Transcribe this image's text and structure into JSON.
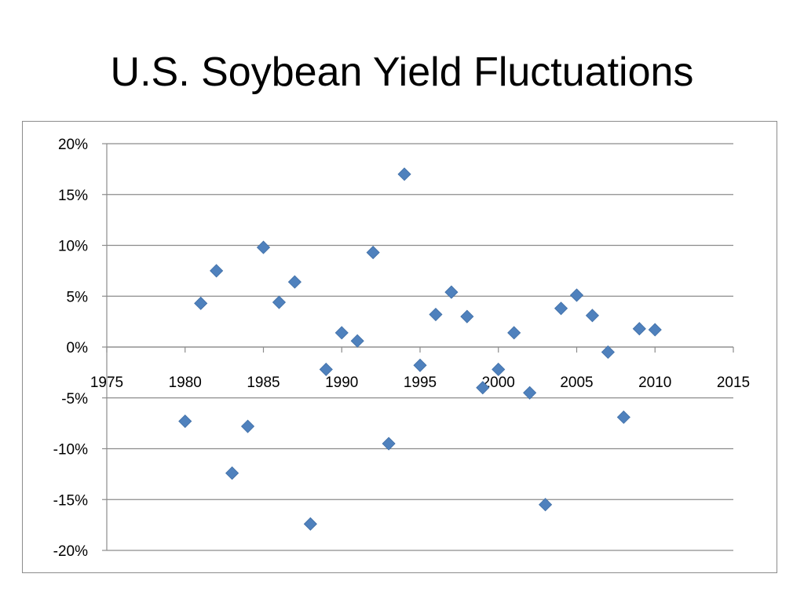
{
  "slide": {
    "title": "U.S. Soybean Yield Fluctuations"
  },
  "chart_data": {
    "type": "scatter",
    "title": "",
    "xlabel": "",
    "ylabel": "",
    "xlim": [
      1975,
      2015
    ],
    "ylim": [
      -0.2,
      0.2
    ],
    "x_ticks": [
      1975,
      1980,
      1985,
      1990,
      1995,
      2000,
      2005,
      2010,
      2015
    ],
    "x_tick_labels": [
      "1975",
      "1980",
      "1985",
      "1990",
      "1995",
      "2000",
      "2005",
      "2010",
      "2015"
    ],
    "y_ticks": [
      0.2,
      0.15,
      0.1,
      0.05,
      0,
      -0.05,
      -0.1,
      -0.15,
      -0.2
    ],
    "y_tick_labels": [
      "20%",
      "15%",
      "10%",
      "5%",
      "0%",
      "-5%",
      "-10%",
      "-15%",
      "-20%"
    ],
    "grid": "horizontal",
    "legend": "none",
    "marker": "diamond",
    "marker_color": "#4f81bd",
    "series": [
      {
        "points": [
          {
            "x": 1980,
            "y": -0.073
          },
          {
            "x": 1981,
            "y": 0.043
          },
          {
            "x": 1982,
            "y": 0.075
          },
          {
            "x": 1983,
            "y": -0.124
          },
          {
            "x": 1984,
            "y": -0.078
          },
          {
            "x": 1985,
            "y": 0.098
          },
          {
            "x": 1986,
            "y": 0.044
          },
          {
            "x": 1987,
            "y": 0.064
          },
          {
            "x": 1988,
            "y": -0.174
          },
          {
            "x": 1989,
            "y": -0.022
          },
          {
            "x": 1990,
            "y": 0.014
          },
          {
            "x": 1991,
            "y": 0.006
          },
          {
            "x": 1992,
            "y": 0.093
          },
          {
            "x": 1993,
            "y": -0.095
          },
          {
            "x": 1994,
            "y": 0.17
          },
          {
            "x": 1995,
            "y": -0.018
          },
          {
            "x": 1996,
            "y": 0.032
          },
          {
            "x": 1997,
            "y": 0.054
          },
          {
            "x": 1998,
            "y": 0.03
          },
          {
            "x": 1999,
            "y": -0.04
          },
          {
            "x": 2000,
            "y": -0.022
          },
          {
            "x": 2001,
            "y": 0.014
          },
          {
            "x": 2002,
            "y": -0.045
          },
          {
            "x": 2003,
            "y": -0.155
          },
          {
            "x": 2004,
            "y": 0.038
          },
          {
            "x": 2005,
            "y": 0.051
          },
          {
            "x": 2006,
            "y": 0.031
          },
          {
            "x": 2007,
            "y": -0.005
          },
          {
            "x": 2008,
            "y": -0.069
          },
          {
            "x": 2009,
            "y": 0.018
          },
          {
            "x": 2010,
            "y": 0.017
          }
        ]
      }
    ]
  }
}
